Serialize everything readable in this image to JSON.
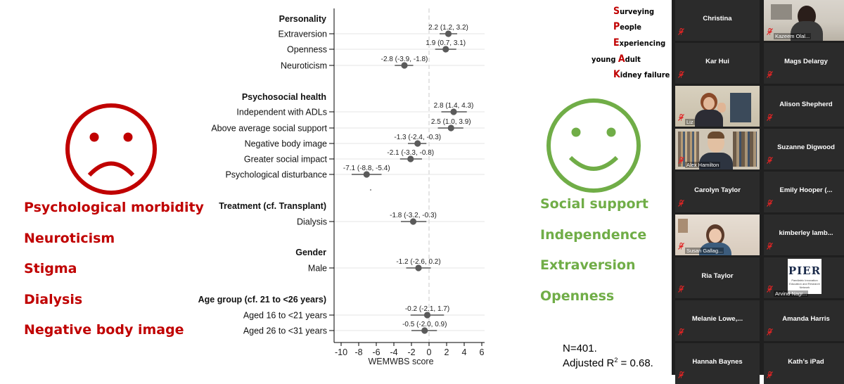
{
  "chart_data": {
    "type": "forest",
    "xlabel": "WEMWBS score",
    "xlim": [
      -10,
      6
    ],
    "xticks": [
      -10,
      -8,
      -6,
      -4,
      -2,
      0,
      2,
      4,
      6
    ],
    "reference_line": 0,
    "groups": [
      {
        "heading": "Personality",
        "items": [
          {
            "label": "Extraversion",
            "estimate": 2.2,
            "ci_low": 1.2,
            "ci_high": 3.2,
            "annotation": "2.2 (1.2, 3.2)"
          },
          {
            "label": "Openness",
            "estimate": 1.9,
            "ci_low": 0.7,
            "ci_high": 3.1,
            "annotation": "1.9 (0.7, 3.1)"
          },
          {
            "label": "Neuroticism",
            "estimate": -2.8,
            "ci_low": -3.9,
            "ci_high": -1.8,
            "annotation": "-2.8 (-3.9, -1.8)"
          }
        ]
      },
      {
        "heading": "Psychosocial health",
        "items": [
          {
            "label": "Independent with ADLs",
            "estimate": 2.8,
            "ci_low": 1.4,
            "ci_high": 4.3,
            "annotation": "2.8 (1.4, 4.3)"
          },
          {
            "label": "Above average social support",
            "estimate": 2.5,
            "ci_low": 1.0,
            "ci_high": 3.9,
            "annotation": "2.5 (1.0, 3.9)"
          },
          {
            "label": "Negative body image",
            "estimate": -1.3,
            "ci_low": -2.4,
            "ci_high": -0.3,
            "annotation": "-1.3 (-2.4, -0.3)"
          },
          {
            "label": "Greater social impact",
            "estimate": -2.1,
            "ci_low": -3.3,
            "ci_high": -0.8,
            "annotation": "-2.1 (-3.3, -0.8)"
          },
          {
            "label": "Psychological disturbance",
            "estimate": -7.1,
            "ci_low": -8.8,
            "ci_high": -5.4,
            "annotation": "-7.1 (-8.8, -5.4)"
          }
        ]
      },
      {
        "heading": "Treatment (cf. Transplant)",
        "items": [
          {
            "label": "Dialysis",
            "estimate": -1.8,
            "ci_low": -3.2,
            "ci_high": -0.3,
            "annotation": "-1.8 (-3.2, -0.3)"
          }
        ]
      },
      {
        "heading": "Gender",
        "items": [
          {
            "label": "Male",
            "estimate": -1.2,
            "ci_low": -2.6,
            "ci_high": 0.2,
            "annotation": "-1.2 (-2.6, 0.2)"
          }
        ]
      },
      {
        "heading": "Age group (cf. 21 to <26 years)",
        "items": [
          {
            "label": "Aged 16 to <21 years",
            "estimate": -0.2,
            "ci_low": -2.1,
            "ci_high": 1.7,
            "annotation": "-0.2 (-2.1, 1.7)"
          },
          {
            "label": "Aged 26 to <31 years",
            "estimate": -0.5,
            "ci_low": -2.0,
            "ci_high": 0.9,
            "annotation": "-0.5 (-2.0, 0.9)"
          }
        ]
      }
    ]
  },
  "slide": {
    "sad_face_color": "#c00000",
    "happy_face_color": "#70ad47",
    "negatives": [
      "Psychological morbidity",
      "Neuroticism",
      "Stigma",
      "Dialysis",
      "Negative body image"
    ],
    "positives": [
      "Social support",
      "Independence",
      "Extraversion",
      "Openness"
    ],
    "speak_lines": [
      {
        "prefix": "",
        "initial": "S",
        "rest": "urveying"
      },
      {
        "prefix": "",
        "initial": "P",
        "rest": "eople"
      },
      {
        "prefix": "",
        "initial": "E",
        "rest": "xperiencing"
      },
      {
        "prefix": "young ",
        "initial": "A",
        "rest": "dult"
      },
      {
        "prefix": "",
        "initial": "K",
        "rest": "idney failure"
      }
    ],
    "stats_n": "N=401.",
    "stats_r2_prefix": "Adjusted R",
    "stats_r2_sup": "2",
    "stats_r2_suffix": " = 0.68."
  },
  "participants": [
    {
      "name": "Christina",
      "video": false
    },
    {
      "name": "Kazeem Olal...",
      "video": true,
      "scene": "dark-office"
    },
    {
      "name": "Kar Hui",
      "video": false
    },
    {
      "name": "Mags Delargy",
      "video": false
    },
    {
      "name": "Liz",
      "video": true,
      "scene": "woman-office"
    },
    {
      "name": "Alison Shepherd",
      "video": false
    },
    {
      "name": "Alex Hamilton",
      "video": true,
      "scene": "man-bookshelf",
      "active": true
    },
    {
      "name": "Suzanne Digwood",
      "video": false
    },
    {
      "name": "Carolyn Taylor",
      "video": false
    },
    {
      "name": "Emily  Hooper (...",
      "video": false
    },
    {
      "name": "Susan Gallag...",
      "video": true,
      "scene": "woman-home"
    },
    {
      "name": "kimberley  lamb...",
      "video": false
    },
    {
      "name": "Ria Taylor",
      "video": false
    },
    {
      "name": "Arvind Nagr...",
      "video": true,
      "scene": "pier-logo",
      "logo_text": "PIER",
      "logo_sub": "Paediatric Innovation Education and Research Network"
    },
    {
      "name": "Melanie  Lowe,...",
      "video": false
    },
    {
      "name": "Amanda Harris",
      "video": false
    },
    {
      "name": "Hannah Baynes",
      "video": false
    },
    {
      "name": "Kath’s iPad",
      "video": false
    }
  ],
  "mic_muted_color": "#e02424"
}
